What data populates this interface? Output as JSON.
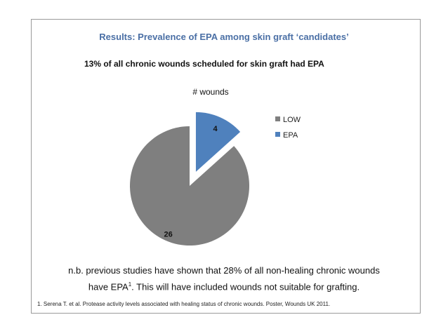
{
  "slide": {
    "title": "Results: Prevalence of EPA among skin graft ‘candidates’",
    "subtitle": "13% of all chronic wounds scheduled for skin graft had EPA",
    "note_line1": "n.b. previous studies have shown that 28% of all non-healing chronic wounds",
    "note_line2_a": "have EPA",
    "note_line2_sup": "1",
    "note_line2_b": ". This will have included wounds not suitable for grafting.",
    "footnote": "1. Serena T. et al. Protease activity levels associated with healing status of chronic wounds. Poster, Wounds UK 2011."
  },
  "chart_data": {
    "type": "pie",
    "title": "# wounds",
    "slices": [
      {
        "label": "LOW",
        "value": 26,
        "color": "#7f7f7f"
      },
      {
        "label": "EPA",
        "value": 4,
        "color": "#4f81bd",
        "exploded": true
      }
    ],
    "data_labels": true,
    "legend_position": "right"
  }
}
